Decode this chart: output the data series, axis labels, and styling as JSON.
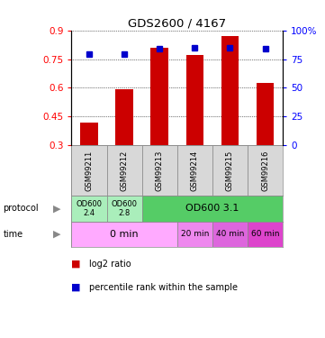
{
  "title": "GDS2600 / 4167",
  "samples": [
    "GSM99211",
    "GSM99212",
    "GSM99213",
    "GSM99214",
    "GSM99215",
    "GSM99216"
  ],
  "log2_ratio": [
    0.415,
    0.59,
    0.81,
    0.77,
    0.87,
    0.625
  ],
  "percentile_rank": [
    0.795,
    0.79,
    0.84,
    0.845,
    0.845,
    0.84
  ],
  "ylim_left": [
    0.3,
    0.9
  ],
  "ylim_right": [
    0,
    100
  ],
  "yticks_left": [
    0.3,
    0.45,
    0.6,
    0.75,
    0.9
  ],
  "yticks_right": [
    0,
    25,
    50,
    75,
    100
  ],
  "ytick_labels_left": [
    "0.3",
    "0.45",
    "0.6",
    "0.75",
    "0.9"
  ],
  "ytick_labels_right": [
    "0",
    "25",
    "50",
    "75",
    "100%"
  ],
  "bar_color": "#cc0000",
  "dot_color": "#0000cc",
  "sample_bg": "#d8d8d8",
  "proto_color_1": "#aaeebb",
  "proto_color_2": "#55cc66",
  "time_color_1": "#ffaaff",
  "time_color_2": "#dd44cc",
  "proto_spans": [
    [
      0,
      1,
      "OD600\n2.4"
    ],
    [
      1,
      2,
      "OD600\n2.8"
    ],
    [
      2,
      6,
      "OD600 3.1"
    ]
  ],
  "time_spans": [
    [
      0,
      3,
      "0 min"
    ],
    [
      3,
      4,
      "20 min"
    ],
    [
      4,
      5,
      "40 min"
    ],
    [
      5,
      6,
      "60 min"
    ]
  ],
  "bg_color": "#ffffff",
  "legend_items": [
    {
      "color": "#cc0000",
      "label": "log2 ratio"
    },
    {
      "color": "#0000cc",
      "label": "percentile rank within the sample"
    }
  ]
}
